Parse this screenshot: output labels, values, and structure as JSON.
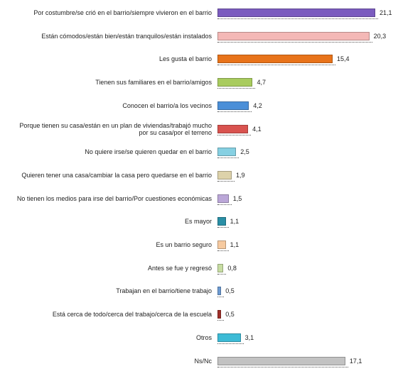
{
  "chart_data": {
    "type": "bar",
    "orientation": "horizontal",
    "categories": [
      "Por costumbre/se crió en el barrio/siempre vivieron en el barrio",
      "Están cómodos/están bien/están tranquilos/están instalados",
      "Les gusta el barrio",
      "Tienen sus familiares en el barrio/amigos",
      "Conocen el barrio/a los vecinos",
      "Porque tienen su casa/están en un plan de viviendas/trabajó mucho por su casa/por el terreno",
      "No quiere irse/se quieren quedar en el barrio",
      "Quieren tener una casa/cambiar la casa pero quedarse en el barrio",
      "No tienen los medios para irse del barrio/Por cuestiones económicas",
      "Es mayor",
      "Es un barrio seguro",
      "Antes se fue y regresó",
      "Trabajan en el barrio/tiene trabajo",
      "Está cerca de todo/cerca del trabajo/cerca de la escuela",
      "Otros",
      "Ns/Nc"
    ],
    "values": [
      21.1,
      20.3,
      15.4,
      4.7,
      4.2,
      4.1,
      2.5,
      1.9,
      1.5,
      1.1,
      1.1,
      0.8,
      0.5,
      0.5,
      3.1,
      17.1
    ],
    "value_labels": [
      "21,1",
      "20,3",
      "15,4",
      "4,7",
      "4,2",
      "4,1",
      "2,5",
      "1,9",
      "1,5",
      "1,1",
      "1,1",
      "0,8",
      "0,5",
      "0,5",
      "3,1",
      "17,1"
    ],
    "colors": [
      "#7b5cbf",
      "#f4b8b6",
      "#e8731a",
      "#a9cc5e",
      "#4b8fd8",
      "#d9534f",
      "#86d0e2",
      "#ddd2aa",
      "#bba7d8",
      "#2a8fa6",
      "#f6caa0",
      "#c7dda2",
      "#6d9bd3",
      "#a0302a",
      "#3dbbd6",
      "#c2c2c2"
    ]
  }
}
